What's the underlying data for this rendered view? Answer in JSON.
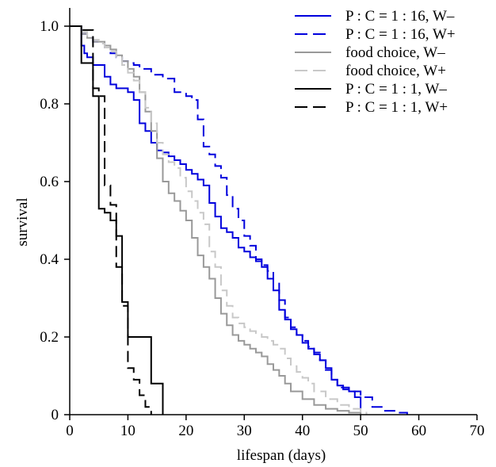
{
  "chart_data": {
    "type": "line",
    "title": "",
    "xlabel": "lifespan (days)",
    "ylabel": "survival",
    "xlim": [
      0,
      70
    ],
    "ylim": [
      0,
      1.0
    ],
    "x_ticks": [
      0,
      10,
      20,
      30,
      40,
      50,
      60,
      70
    ],
    "y_ticks": [
      0,
      0.2,
      0.4,
      0.6,
      0.8,
      1.0
    ],
    "x_tick_labels": [
      "0",
      "10",
      "20",
      "30",
      "40",
      "50",
      "60",
      "70"
    ],
    "y_tick_labels": [
      "0",
      "0.2",
      "0.4",
      "0.6",
      "0.8",
      "1.0"
    ],
    "grid": false,
    "legend_position": "top-right",
    "step": true,
    "series": [
      {
        "name": "P : C = 1 : 16, W–",
        "color": "#0000dd",
        "dash": "solid",
        "x": [
          0,
          2,
          2.5,
          3,
          4,
          6,
          7,
          8,
          10,
          11,
          12,
          13,
          14,
          15,
          16,
          17,
          18,
          19,
          20,
          21,
          22,
          23,
          24,
          25,
          26,
          27,
          28,
          29,
          30,
          31,
          32,
          33,
          34,
          35,
          36,
          37,
          38,
          39,
          40,
          41,
          42,
          43,
          44,
          45,
          46,
          47,
          48,
          49,
          50
        ],
        "y": [
          1.0,
          0.95,
          0.93,
          0.92,
          0.9,
          0.87,
          0.85,
          0.84,
          0.83,
          0.81,
          0.75,
          0.73,
          0.7,
          0.68,
          0.675,
          0.665,
          0.655,
          0.645,
          0.63,
          0.62,
          0.605,
          0.59,
          0.545,
          0.51,
          0.48,
          0.47,
          0.455,
          0.43,
          0.42,
          0.405,
          0.395,
          0.38,
          0.35,
          0.32,
          0.27,
          0.245,
          0.22,
          0.205,
          0.185,
          0.17,
          0.155,
          0.14,
          0.12,
          0.09,
          0.075,
          0.065,
          0.06,
          0.045,
          0.015
        ]
      },
      {
        "name": "P : C = 1 : 16, W+",
        "color": "#0000dd",
        "dash": "dashed",
        "x": [
          0,
          2,
          3,
          4,
          5,
          6,
          7,
          8,
          9,
          10,
          11,
          12,
          14,
          16,
          18,
          20,
          21,
          22,
          23,
          24,
          25,
          26,
          27,
          28,
          29,
          30,
          31,
          32,
          33,
          34,
          35,
          36,
          37,
          38,
          39,
          40,
          41,
          42,
          43,
          44,
          45,
          46,
          48,
          50,
          52,
          54,
          56,
          58
        ],
        "y": [
          1.0,
          0.98,
          0.97,
          0.96,
          0.955,
          0.945,
          0.93,
          0.92,
          0.91,
          0.905,
          0.9,
          0.89,
          0.875,
          0.865,
          0.83,
          0.82,
          0.81,
          0.76,
          0.69,
          0.67,
          0.64,
          0.61,
          0.565,
          0.53,
          0.5,
          0.46,
          0.435,
          0.4,
          0.385,
          0.37,
          0.34,
          0.295,
          0.25,
          0.225,
          0.205,
          0.19,
          0.175,
          0.16,
          0.14,
          0.115,
          0.09,
          0.07,
          0.06,
          0.045,
          0.02,
          0.01,
          0.005,
          0.0
        ]
      },
      {
        "name": "food choice, W–",
        "color": "#999999",
        "dash": "solid",
        "x": [
          0,
          2,
          3,
          4,
          6,
          7,
          8,
          9,
          10,
          11,
          12,
          13,
          14,
          15,
          16,
          17,
          18,
          19,
          20,
          21,
          22,
          23,
          24,
          25,
          26,
          27,
          28,
          29,
          30,
          31,
          32,
          33,
          34,
          35,
          36,
          37,
          38,
          40,
          42,
          44,
          46,
          48,
          50
        ],
        "y": [
          1.0,
          0.98,
          0.97,
          0.96,
          0.95,
          0.94,
          0.925,
          0.91,
          0.89,
          0.87,
          0.83,
          0.78,
          0.73,
          0.66,
          0.6,
          0.57,
          0.55,
          0.525,
          0.5,
          0.455,
          0.41,
          0.38,
          0.35,
          0.3,
          0.26,
          0.23,
          0.205,
          0.19,
          0.18,
          0.17,
          0.16,
          0.15,
          0.13,
          0.115,
          0.1,
          0.08,
          0.06,
          0.04,
          0.025,
          0.015,
          0.01,
          0.005,
          0.0
        ]
      },
      {
        "name": "food choice, W+",
        "color": "#c8c8c8",
        "dash": "dashed",
        "x": [
          0,
          2,
          3,
          4,
          5,
          6,
          7,
          8,
          9,
          10,
          11,
          12,
          13,
          14,
          15,
          16,
          17,
          18,
          19,
          20,
          21,
          22,
          23,
          24,
          25,
          26,
          27,
          28,
          29,
          30,
          31,
          32,
          33,
          34,
          35,
          36,
          37,
          38,
          39,
          40,
          41,
          42,
          44,
          46,
          48,
          50,
          51
        ],
        "y": [
          1.0,
          0.985,
          0.975,
          0.965,
          0.955,
          0.945,
          0.935,
          0.92,
          0.9,
          0.88,
          0.86,
          0.83,
          0.79,
          0.75,
          0.7,
          0.67,
          0.65,
          0.635,
          0.61,
          0.575,
          0.55,
          0.52,
          0.49,
          0.42,
          0.38,
          0.32,
          0.28,
          0.25,
          0.235,
          0.225,
          0.215,
          0.21,
          0.2,
          0.19,
          0.18,
          0.17,
          0.145,
          0.125,
          0.11,
          0.095,
          0.08,
          0.06,
          0.04,
          0.025,
          0.015,
          0.005,
          0.0
        ]
      },
      {
        "name": "P : C = 1 : 1, W–",
        "color": "#000000",
        "dash": "solid",
        "x": [
          0,
          2,
          4,
          5,
          6,
          7,
          8,
          9,
          10,
          12,
          14,
          16
        ],
        "y": [
          1.0,
          0.905,
          0.82,
          0.53,
          0.52,
          0.5,
          0.46,
          0.29,
          0.2,
          0.2,
          0.08,
          0.0
        ]
      },
      {
        "name": "P : C = 1 : 1, W+",
        "color": "#000000",
        "dash": "dashed",
        "x": [
          0,
          2,
          4,
          5,
          6,
          7,
          8,
          9,
          10,
          11,
          12,
          13,
          14
        ],
        "y": [
          1.0,
          0.99,
          0.84,
          0.82,
          0.59,
          0.54,
          0.38,
          0.28,
          0.12,
          0.09,
          0.05,
          0.02,
          0.0
        ]
      }
    ]
  }
}
